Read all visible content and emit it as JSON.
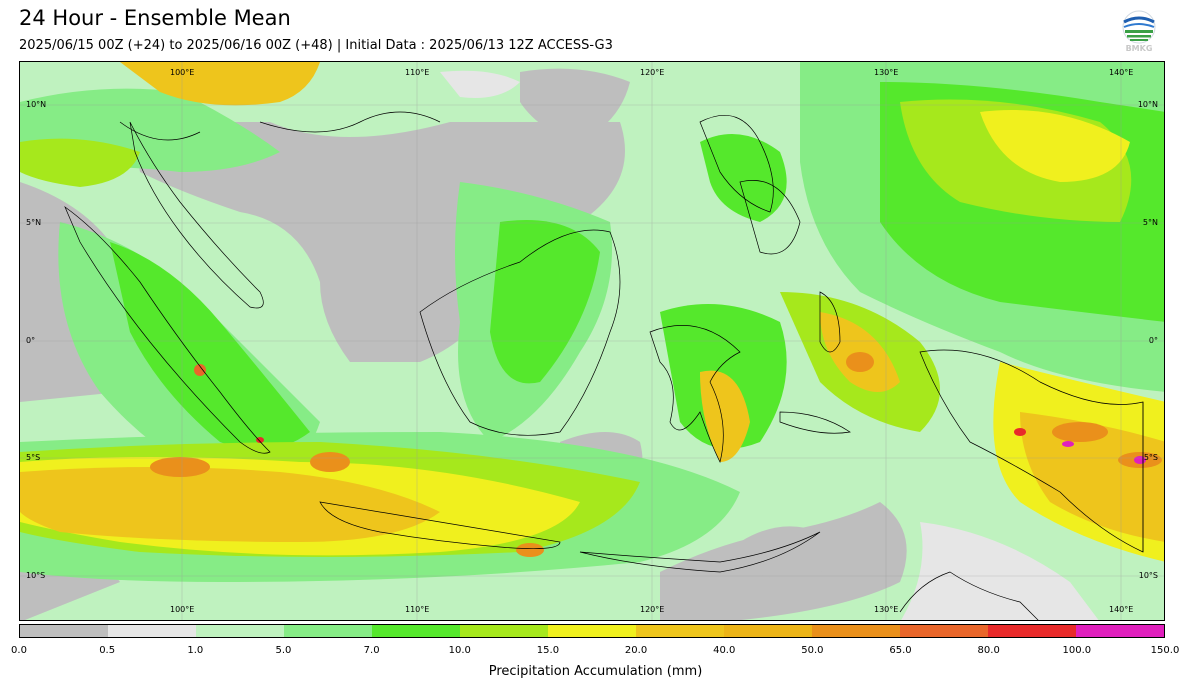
{
  "header": {
    "title": "24 Hour - Ensemble Mean",
    "subtitle": "2025/06/15 00Z (+24) to 2025/06/16 00Z (+48) | Initial Data : 2025/06/13 12Z ACCESS-G3",
    "logo_text": "BMKG",
    "logo_icon": "bmkg-logo-icon"
  },
  "map": {
    "lon_labels": [
      "100°E",
      "110°E",
      "120°E",
      "130°E",
      "140°E"
    ],
    "lat_labels": [
      "10°N",
      "5°N",
      "0°",
      "5°S",
      "10°S"
    ]
  },
  "colorbar": {
    "label": "Precipitation Accumulation (mm)",
    "ticks": [
      "0.0",
      "0.5",
      "1.0",
      "5.0",
      "7.0",
      "10.0",
      "15.0",
      "20.0",
      "40.0",
      "50.0",
      "65.0",
      "80.0",
      "100.0",
      "150.0"
    ],
    "colors": [
      "#bebebe",
      "#e6e6e6",
      "#bff2bf",
      "#86ec86",
      "#55e82c",
      "#a6e81c",
      "#f0f01e",
      "#eec51c",
      "#ecb417",
      "#ea901b",
      "#e9662a",
      "#e82a2a",
      "#e01fbd"
    ]
  }
}
